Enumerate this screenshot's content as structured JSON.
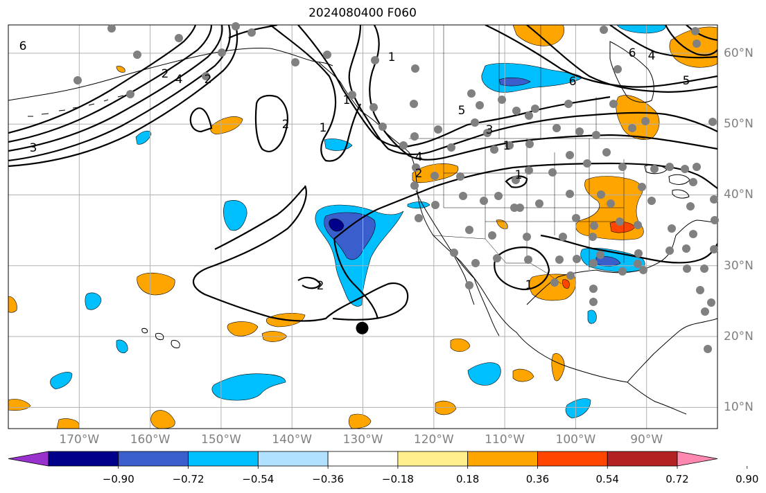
{
  "title": "2024080400 F060",
  "map": {
    "projection": "equirectangular",
    "lon_range": [
      -180,
      -80
    ],
    "lat_range": [
      7,
      64
    ],
    "gridlines": true,
    "contour_color": "#000000",
    "station_color": "#808080",
    "marker_label": "",
    "marker_lonlat": [
      -130.1,
      21.2
    ]
  },
  "lon_ticks": [
    {
      "value": -170,
      "label": "170°W"
    },
    {
      "value": -160,
      "label": "160°W"
    },
    {
      "value": -150,
      "label": "150°W"
    },
    {
      "value": -140,
      "label": "140°W"
    },
    {
      "value": -130,
      "label": "130°W"
    },
    {
      "value": -120,
      "label": "120°W"
    },
    {
      "value": -110,
      "label": "110°W"
    },
    {
      "value": -100,
      "label": "100°W"
    },
    {
      "value": -90,
      "label": "90°W"
    }
  ],
  "lat_ticks": [
    {
      "value": 60,
      "label": "60°N"
    },
    {
      "value": 50,
      "label": "50°N"
    },
    {
      "value": 40,
      "label": "40°N"
    },
    {
      "value": 30,
      "label": "30°N"
    },
    {
      "value": 20,
      "label": "20°N"
    },
    {
      "value": 10,
      "label": "10°N"
    }
  ],
  "colorbar": {
    "extend": "both",
    "colors": [
      "#9932cc",
      "#00008b",
      "#3a5fcd",
      "#00bfff",
      "#b0e2ff",
      "#ffffff",
      "#fff08c",
      "#ffa500",
      "#ff4500",
      "#b22222",
      "#ff88b0"
    ],
    "boundaries": [
      -0.9,
      -0.72,
      -0.54,
      -0.36,
      -0.18,
      0.18,
      0.36,
      0.54,
      0.72,
      0.9
    ],
    "labels": [
      "−0.90",
      "−0.72",
      "−0.54",
      "−0.36",
      "−0.18",
      "0.18",
      "0.36",
      "0.54",
      "0.72",
      "0.90"
    ]
  },
  "contour_labels": [
    "6",
    "4",
    "3",
    "2",
    "1",
    "1",
    "2",
    "2",
    "1",
    "4",
    "2",
    "1",
    "1",
    "5",
    "3",
    "6",
    "6",
    "4",
    "5",
    "1",
    "2"
  ]
}
